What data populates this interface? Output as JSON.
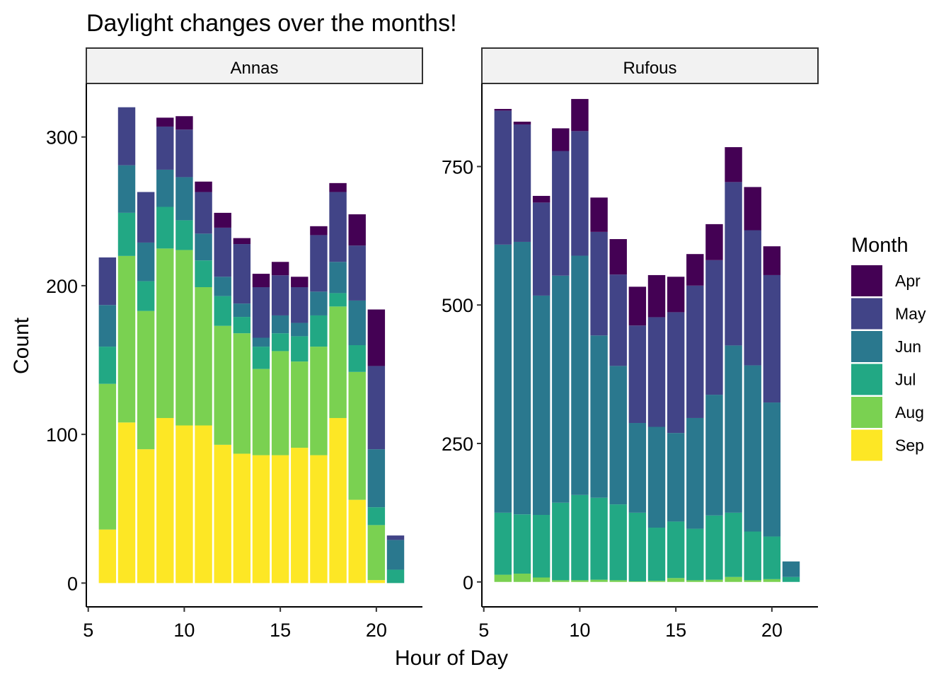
{
  "chart_data": {
    "type": "bar",
    "stacked": true,
    "title": "Daylight changes over the months!",
    "xlabel": "Hour of Day",
    "ylabel": "Count",
    "legend": {
      "title": "Month",
      "placement": "right",
      "entries": [
        {
          "name": "Apr",
          "color": "#440154"
        },
        {
          "name": "May",
          "color": "#414487"
        },
        {
          "name": "Jun",
          "color": "#2A788E"
        },
        {
          "name": "Jul",
          "color": "#22A884"
        },
        {
          "name": "Aug",
          "color": "#7AD151"
        },
        {
          "name": "Sep",
          "color": "#FDE725"
        }
      ]
    },
    "grid": false,
    "panels": [
      {
        "name": "Annas",
        "xlim": [
          4.9,
          22.4
        ],
        "ylim": [
          -16,
          336
        ],
        "xticks": [
          5,
          10,
          15,
          20
        ],
        "yticks": [
          0,
          100,
          200,
          300
        ],
        "x": [
          6,
          7,
          8,
          9,
          10,
          11,
          12,
          13,
          14,
          15,
          16,
          17,
          18,
          19,
          20,
          21
        ],
        "series": [
          {
            "name": "Sep",
            "values": [
              36,
              108,
              90,
              111,
              106,
              106,
              93,
              87,
              86,
              86,
              91,
              86,
              111,
              56,
              2,
              0
            ]
          },
          {
            "name": "Aug",
            "values": [
              98,
              112,
              93,
              114,
              118,
              93,
              80,
              81,
              58,
              70,
              58,
              73,
              75,
              86,
              37,
              0
            ]
          },
          {
            "name": "Jul",
            "values": [
              25,
              29,
              20,
              28,
              20,
              18,
              20,
              11,
              15,
              12,
              17,
              21,
              9,
              18,
              12,
              9
            ]
          },
          {
            "name": "Jun",
            "values": [
              28,
              32,
              26,
              25,
              29,
              18,
              13,
              9,
              6,
              12,
              9,
              16,
              21,
              30,
              39,
              20
            ]
          },
          {
            "name": "May",
            "values": [
              32,
              39,
              34,
              29,
              32,
              28,
              33,
              40,
              34,
              27,
              24,
              38,
              47,
              37,
              56,
              3
            ]
          },
          {
            "name": "Apr",
            "values": [
              0,
              0,
              0,
              6,
              9,
              7,
              10,
              4,
              9,
              9,
              7,
              6,
              6,
              21,
              38,
              0
            ]
          }
        ]
      },
      {
        "name": "Rufous",
        "xlim": [
          4.9,
          22.4
        ],
        "ylim": [
          -45,
          900
        ],
        "xticks": [
          5,
          10,
          15,
          20
        ],
        "yticks": [
          0,
          250,
          500,
          750
        ],
        "x": [
          6,
          7,
          8,
          9,
          10,
          11,
          12,
          13,
          14,
          15,
          16,
          17,
          18,
          19,
          20,
          21
        ],
        "series": [
          {
            "name": "Sep",
            "values": [
              0,
              0,
              0,
              0,
              0,
              0,
              0,
              0,
              0,
              0,
              0,
              0,
              0,
              0,
              0,
              0
            ]
          },
          {
            "name": "Aug",
            "values": [
              13,
              15,
              8,
              3,
              3,
              4,
              3,
              1,
              2,
              7,
              3,
              4,
              9,
              3,
              5,
              0
            ]
          },
          {
            "name": "Jul",
            "values": [
              112,
              107,
              113,
              140,
              154,
              148,
              137,
              124,
              96,
              102,
              93,
              116,
              116,
              88,
              77,
              9
            ]
          },
          {
            "name": "Jun",
            "values": [
              484,
              492,
              396,
              410,
              432,
              293,
              250,
              162,
              182,
              160,
              200,
              218,
              302,
              300,
              242,
              28
            ]
          },
          {
            "name": "May",
            "values": [
              242,
              212,
              168,
              225,
              225,
              187,
              165,
              176,
              198,
              218,
              239,
              243,
              295,
              244,
              230,
              0
            ]
          },
          {
            "name": "Apr",
            "values": [
              3,
              5,
              12,
              41,
              58,
              62,
              64,
              70,
              76,
              64,
              57,
              65,
              63,
              78,
              52,
              0
            ]
          }
        ]
      }
    ]
  }
}
